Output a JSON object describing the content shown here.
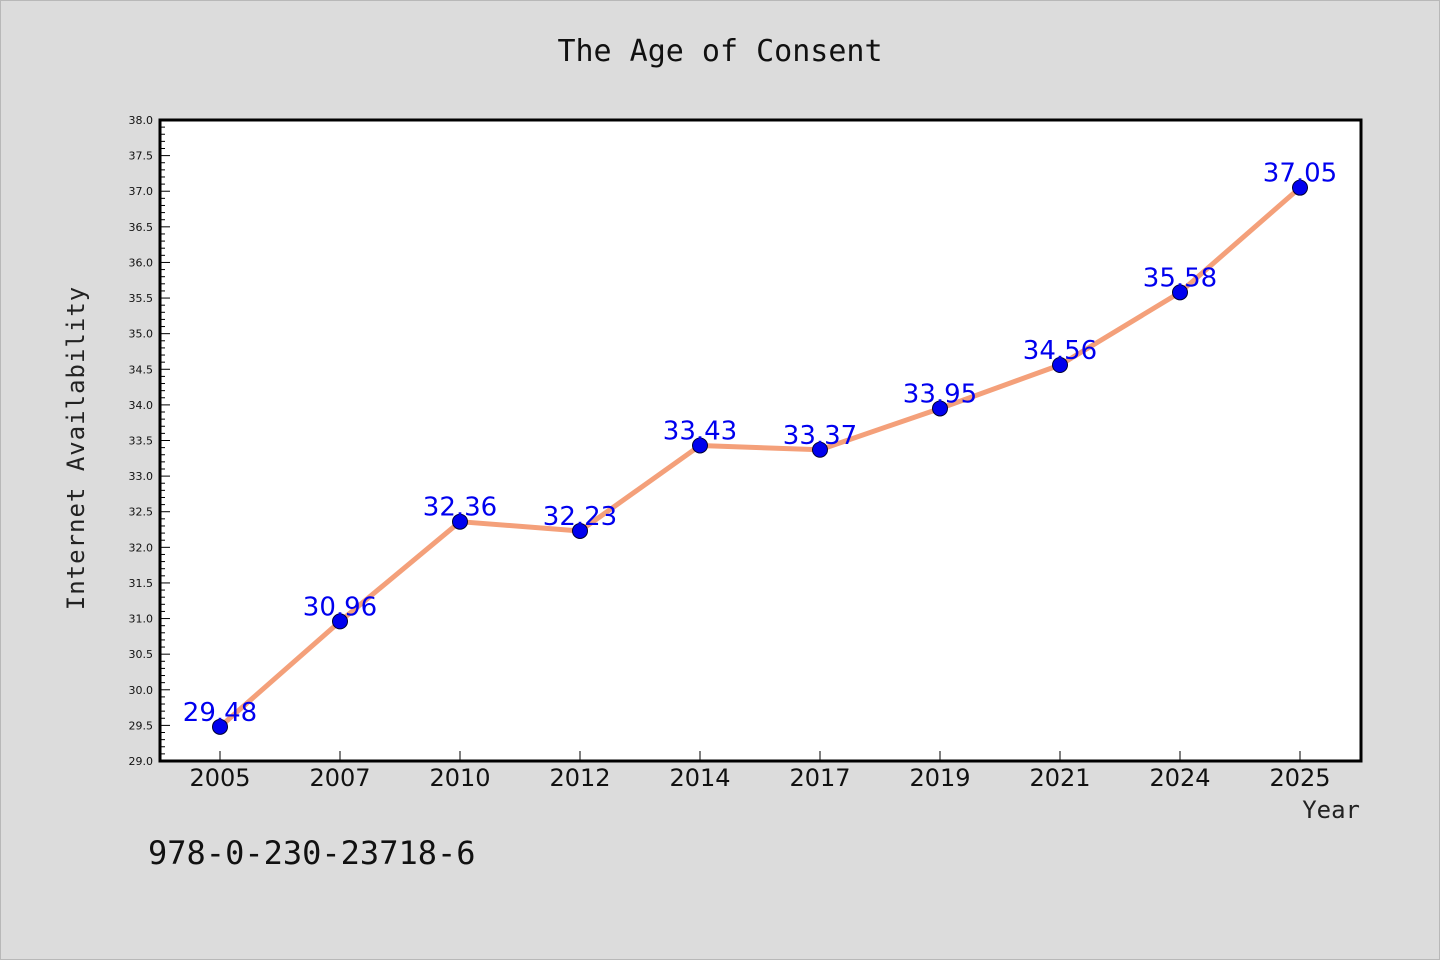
{
  "chart_data": {
    "type": "line",
    "title": "The Age of Consent",
    "xlabel": "Year",
    "ylabel": "Internet Availability",
    "categories": [
      "2005",
      "2007",
      "2010",
      "2012",
      "2014",
      "2017",
      "2019",
      "2021",
      "2024",
      "2025"
    ],
    "series": [
      {
        "values": [
          29.48,
          30.96,
          32.36,
          32.23,
          33.43,
          33.37,
          33.95,
          34.56,
          35.58,
          37.05
        ]
      }
    ],
    "data_labels": [
      "29.48",
      "30.96",
      "32.36",
      "32.23",
      "33.43",
      "33.37",
      "33.95",
      "34.56",
      "35.58",
      "37.05"
    ],
    "ylim": [
      29.0,
      38.0
    ],
    "yticks": [
      "29.0",
      "29.5",
      "30.0",
      "30.5",
      "31.0",
      "31.5",
      "32.0",
      "32.5",
      "33.0",
      "33.5",
      "34.0",
      "34.5",
      "35.0",
      "35.5",
      "36.0",
      "36.5",
      "37.0",
      "37.5",
      "38.0"
    ],
    "grid": false,
    "line_color": "#f4a07a",
    "marker_color": "#0000ee",
    "label_color": "#0000ee"
  },
  "footer": {
    "isbn": "978-0-230-23718-6"
  }
}
